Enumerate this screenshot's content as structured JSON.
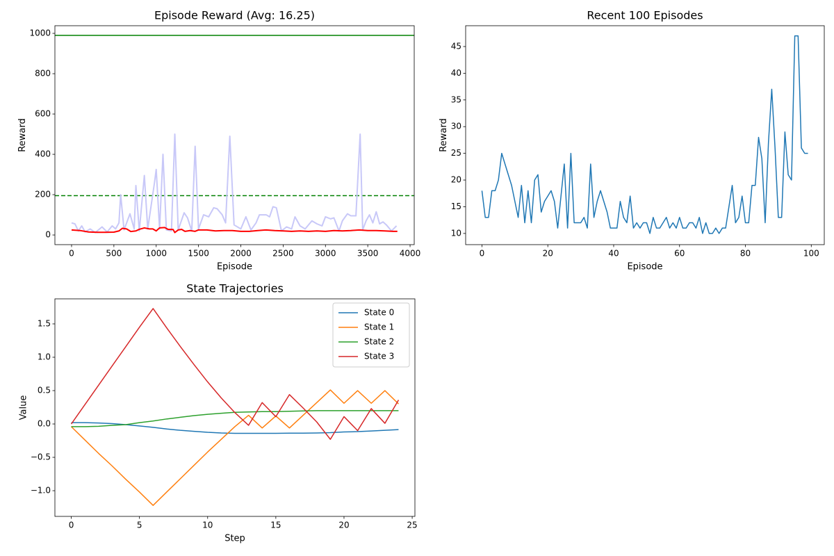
{
  "chart_data": [
    {
      "type": "line",
      "title": "Episode Reward (Avg: 16.25)",
      "xlabel": "Episode",
      "ylabel": "Reward",
      "xlim": [
        -197,
        4049
      ],
      "ylim": [
        -48,
        1038
      ],
      "xticks": [
        0,
        500,
        1000,
        1500,
        2000,
        2500,
        3000,
        3500,
        4000
      ],
      "yticks": [
        0,
        200,
        400,
        600,
        800,
        1000
      ],
      "series": [
        {
          "color": "#c8c8f8",
          "width": 2,
          "x": [
            0,
            40,
            80,
            120,
            160,
            220,
            280,
            360,
            420,
            480,
            520,
            560,
            580,
            620,
            690,
            740,
            760,
            800,
            860,
            900,
            980,
            1000,
            1040,
            1080,
            1120,
            1180,
            1220,
            1260,
            1330,
            1370,
            1420,
            1460,
            1500,
            1560,
            1620,
            1680,
            1720,
            1780,
            1820,
            1870,
            1920,
            2000,
            2060,
            2120,
            2180,
            2220,
            2260,
            2300,
            2340,
            2380,
            2420,
            2480,
            2540,
            2600,
            2640,
            2700,
            2760,
            2840,
            2900,
            2960,
            3000,
            3060,
            3100,
            3160,
            3200,
            3260,
            3300,
            3360,
            3410,
            3440,
            3480,
            3520,
            3560,
            3600,
            3640,
            3680,
            3720,
            3780,
            3840
          ],
          "values": [
            60,
            55,
            20,
            45,
            15,
            30,
            12,
            40,
            15,
            45,
            30,
            60,
            200,
            25,
            105,
            30,
            245,
            20,
            295,
            30,
            260,
            325,
            30,
            400,
            25,
            20,
            500,
            25,
            110,
            85,
            20,
            440,
            30,
            100,
            90,
            135,
            130,
            100,
            60,
            490,
            50,
            30,
            90,
            25,
            60,
            100,
            100,
            100,
            90,
            140,
            135,
            20,
            40,
            30,
            90,
            45,
            30,
            70,
            55,
            45,
            90,
            80,
            85,
            20,
            70,
            105,
            95,
            95,
            500,
            25,
            70,
            100,
            60,
            115,
            55,
            65,
            50,
            20,
            45
          ]
        },
        {
          "color": "#ff0000",
          "width": 2,
          "x": [
            0,
            100,
            200,
            300,
            400,
            500,
            560,
            600,
            650,
            700,
            760,
            800,
            860,
            920,
            960,
            1000,
            1040,
            1100,
            1140,
            1200,
            1220,
            1260,
            1300,
            1340,
            1400,
            1460,
            1500,
            1600,
            1700,
            1800,
            1900,
            2000,
            2100,
            2200,
            2300,
            2400,
            2500,
            2600,
            2700,
            2800,
            2900,
            3000,
            3100,
            3200,
            3300,
            3400,
            3500,
            3600,
            3700,
            3800,
            3850
          ],
          "values": [
            25,
            22,
            15,
            13,
            13,
            14,
            20,
            33,
            30,
            17,
            20,
            28,
            35,
            30,
            30,
            20,
            35,
            37,
            28,
            27,
            12,
            25,
            28,
            18,
            22,
            18,
            25,
            25,
            20,
            22,
            22,
            18,
            18,
            22,
            25,
            22,
            20,
            18,
            20,
            18,
            20,
            18,
            22,
            20,
            22,
            25,
            22,
            22,
            20,
            18,
            18
          ]
        }
      ],
      "reference_lines": [
        {
          "value": 990,
          "color": "#008000",
          "dashed": false
        },
        {
          "value": 195,
          "color": "#008000",
          "dashed": true
        }
      ]
    },
    {
      "type": "line",
      "title": "Recent 100 Episodes",
      "xlabel": "Episode",
      "ylabel": "Reward",
      "xlim": [
        -4.95,
        103.95
      ],
      "ylim": [
        7.9,
        48.9
      ],
      "xticks": [
        0,
        20,
        40,
        60,
        80,
        100
      ],
      "yticks": [
        10,
        15,
        20,
        25,
        30,
        35,
        40,
        45
      ],
      "x": [
        0,
        1,
        2,
        3,
        4,
        5,
        6,
        7,
        8,
        9,
        10,
        11,
        12,
        13,
        14,
        15,
        16,
        17,
        18,
        19,
        20,
        21,
        22,
        23,
        24,
        25,
        26,
        27,
        28,
        29,
        30,
        31,
        32,
        33,
        34,
        35,
        36,
        37,
        38,
        39,
        40,
        41,
        42,
        43,
        44,
        45,
        46,
        47,
        48,
        49,
        50,
        51,
        52,
        53,
        54,
        55,
        56,
        57,
        58,
        59,
        60,
        61,
        62,
        63,
        64,
        65,
        66,
        67,
        68,
        69,
        70,
        71,
        72,
        73,
        74,
        75,
        76,
        77,
        78,
        79,
        80,
        81,
        82,
        83,
        84,
        85,
        86,
        87,
        88,
        89,
        90,
        91,
        92,
        93,
        94,
        95,
        96,
        97,
        98,
        99
      ],
      "series": [
        {
          "color": "#1f77b4",
          "width": 1.5,
          "values": [
            18,
            13,
            13,
            18,
            18,
            20,
            25,
            23,
            21,
            19,
            16,
            13,
            19,
            12,
            18,
            12,
            20,
            21,
            14,
            16,
            17,
            18,
            16,
            11,
            17,
            23,
            11,
            25,
            12,
            12,
            12,
            13,
            11,
            23,
            13,
            16,
            18,
            16,
            14,
            11,
            11,
            11,
            16,
            13,
            12,
            17,
            11,
            12,
            11,
            12,
            12,
            10,
            13,
            11,
            11,
            12,
            13,
            11,
            12,
            11,
            13,
            11,
            11,
            12,
            12,
            11,
            13,
            10,
            12,
            10,
            10,
            11,
            10,
            11,
            11,
            15,
            19,
            12,
            13,
            17,
            12,
            12,
            19,
            19,
            28,
            24,
            12,
            27,
            37,
            26,
            13,
            13,
            29,
            21,
            20,
            47,
            47,
            26,
            25,
            25
          ]
        }
      ]
    },
    {
      "type": "line",
      "title": "State Trajectories",
      "xlabel": "Step",
      "ylabel": "Value",
      "xlim": [
        -1.2,
        25.2
      ],
      "ylim": [
        -1.385,
        1.875
      ],
      "xticks": [
        0,
        5,
        10,
        15,
        20,
        25
      ],
      "yticks": [
        {
          "value": -1.0,
          "label": "−1.0"
        },
        {
          "value": -0.5,
          "label": "−0.5"
        },
        {
          "value": 0.0,
          "label": "0.0"
        },
        {
          "value": 0.5,
          "label": "0.5"
        },
        {
          "value": 1.0,
          "label": "1.0"
        },
        {
          "value": 1.5,
          "label": "1.5"
        }
      ],
      "legend": "upper right",
      "x": [
        0,
        1,
        2,
        3,
        4,
        5,
        6,
        7,
        8,
        9,
        10,
        11,
        12,
        13,
        14,
        15,
        16,
        17,
        18,
        19,
        20,
        21,
        22,
        23,
        24
      ],
      "series": [
        {
          "name": "State 0",
          "color": "#1f77b4",
          "width": 1.5,
          "values": [
            0.02,
            0.02,
            0.015,
            0.005,
            -0.01,
            -0.03,
            -0.05,
            -0.075,
            -0.095,
            -0.11,
            -0.125,
            -0.135,
            -0.14,
            -0.14,
            -0.14,
            -0.14,
            -0.138,
            -0.138,
            -0.135,
            -0.13,
            -0.12,
            -0.115,
            -0.105,
            -0.095,
            -0.085
          ]
        },
        {
          "name": "State 1",
          "color": "#ff7f0e",
          "width": 1.5,
          "values": [
            -0.04,
            -0.24,
            -0.44,
            -0.63,
            -0.83,
            -1.02,
            -1.22,
            -1.02,
            -0.82,
            -0.62,
            -0.42,
            -0.23,
            -0.04,
            0.13,
            -0.06,
            0.12,
            -0.06,
            0.13,
            0.32,
            0.51,
            0.31,
            0.5,
            0.31,
            0.5,
            0.3
          ]
        },
        {
          "name": "State 2",
          "color": "#2ca02c",
          "width": 1.5,
          "values": [
            -0.04,
            -0.04,
            -0.035,
            -0.02,
            -0.01,
            0.02,
            0.045,
            0.075,
            0.1,
            0.125,
            0.145,
            0.16,
            0.175,
            0.18,
            0.185,
            0.185,
            0.19,
            0.195,
            0.2,
            0.2,
            0.2,
            0.2,
            0.2,
            0.2,
            0.2
          ]
        },
        {
          "name": "State 3",
          "color": "#d62728",
          "width": 1.5,
          "values": [
            0,
            0.29,
            0.58,
            0.87,
            1.16,
            1.45,
            1.73,
            1.44,
            1.16,
            0.89,
            0.63,
            0.39,
            0.17,
            -0.02,
            0.32,
            0.11,
            0.44,
            0.24,
            0.03,
            -0.23,
            0.11,
            -0.1,
            0.23,
            0.01,
            0.36
          ]
        }
      ]
    }
  ]
}
